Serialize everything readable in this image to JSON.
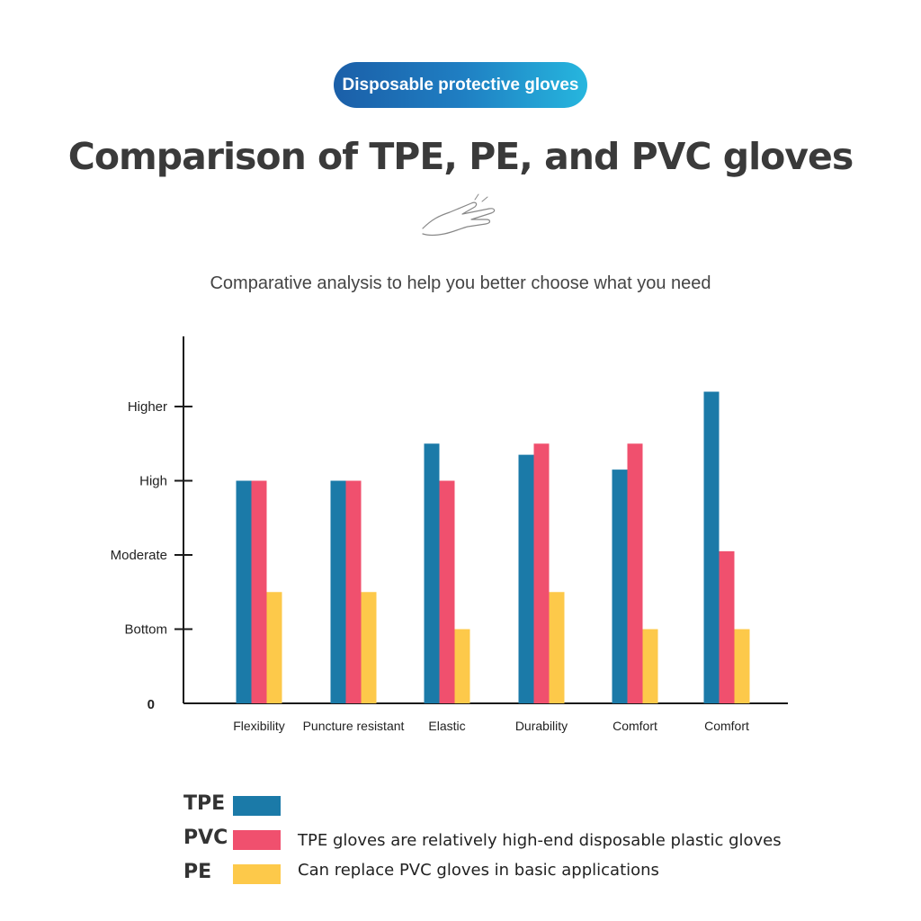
{
  "badge": "Disposable protective gloves",
  "title": "Comparison of TPE, PE, and PVC gloves",
  "subtitle": "Comparative analysis to help you better choose what you need",
  "icons": {
    "decoration": "hand-icon"
  },
  "colors": {
    "TPE": "#1b7aa8",
    "PVC": "#f0506e",
    "PE": "#fdc94a",
    "axis": "#1a1a1a"
  },
  "chart_data": {
    "type": "bar",
    "categories": [
      "Flexibility",
      "Puncture resistant",
      "Elastic",
      "Durability",
      "Comfort",
      "Comfort"
    ],
    "y_ticks": [
      {
        "label": "0",
        "value": 0
      },
      {
        "label": "Bottom",
        "value": 1
      },
      {
        "label": "Moderate",
        "value": 2
      },
      {
        "label": "High",
        "value": 3
      },
      {
        "label": "Higher",
        "value": 4
      }
    ],
    "ylim": [
      0,
      5
    ],
    "series": [
      {
        "name": "TPE",
        "values": [
          3.0,
          3.0,
          3.5,
          3.35,
          3.15,
          4.2
        ]
      },
      {
        "name": "PVC",
        "values": [
          3.0,
          3.0,
          3.0,
          3.5,
          3.5,
          2.05
        ]
      },
      {
        "name": "PE",
        "values": [
          1.5,
          1.5,
          1.0,
          1.5,
          1.0,
          1.0
        ]
      }
    ],
    "grid": false
  },
  "legend": {
    "items": [
      {
        "key": "TPE",
        "note": ""
      },
      {
        "key": "PVC",
        "note": "TPE gloves are relatively high-end disposable plastic gloves"
      },
      {
        "key": "PE",
        "note": "Can replace PVC gloves in basic applications"
      }
    ]
  }
}
